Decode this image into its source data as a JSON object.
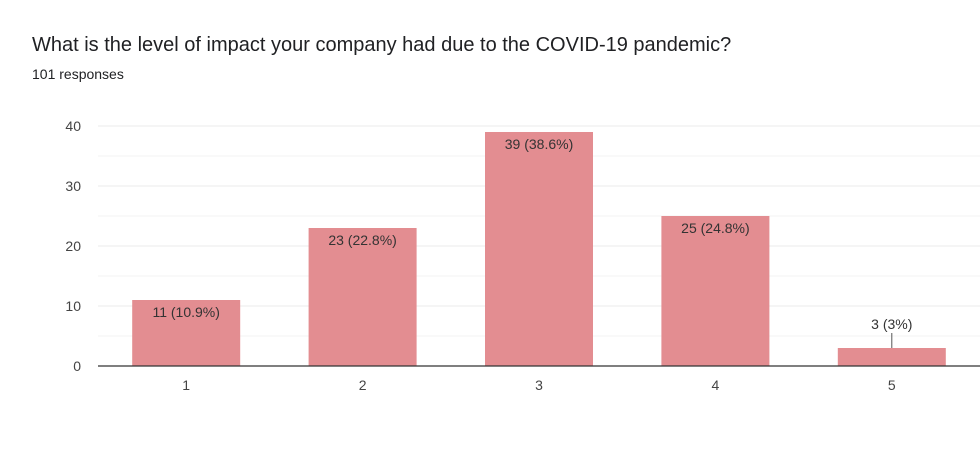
{
  "title": "What is the level of impact your company had due to the COVID-19 pandemic?",
  "subtitle": "101 responses",
  "chart_data": {
    "type": "bar",
    "categories": [
      "1",
      "2",
      "3",
      "4",
      "5"
    ],
    "values": [
      11,
      23,
      39,
      25,
      3
    ],
    "data_labels": [
      "11 (10.9%)",
      "23 (22.8%)",
      "39 (38.6%)",
      "25 (24.8%)",
      "3 (3%)"
    ],
    "ylim": [
      0,
      40
    ],
    "yticks": [
      0,
      10,
      20,
      30,
      40
    ],
    "grid": true,
    "bar_color": "#e38d91",
    "axis_color": "#333333",
    "grid_color": "#ebebeb"
  }
}
